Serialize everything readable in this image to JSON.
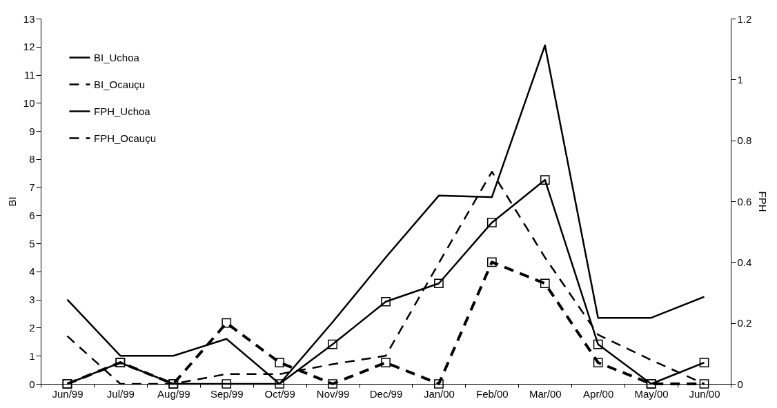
{
  "chart_data": {
    "type": "line",
    "categories": [
      "Jun/99",
      "Jul/99",
      "Aug/99",
      "Sep/99",
      "Oct/99",
      "Nov/99",
      "Dec/99",
      "Jan/00",
      "Feb/00",
      "Mar/00",
      "Apr/00",
      "May/00",
      "Jun/00"
    ],
    "series": [
      {
        "name": "BI_Uchoa",
        "color": "#000000",
        "line_style": "solid",
        "marker": "none",
        "values": [
          3.0,
          1.0,
          1.0,
          1.6,
          0,
          2.2,
          4.5,
          6.7,
          6.65,
          12.05,
          2.35,
          2.35,
          3.1
        ]
      },
      {
        "name": "BI_Ocauçu",
        "color": "#000000",
        "line_style": "dashed",
        "marker": "none",
        "values": [
          1.7,
          0,
          0,
          0.35,
          0.35,
          0.7,
          1.0,
          4.3,
          7.55,
          4.5,
          1.75,
          0.85,
          0
        ]
      },
      {
        "name": "FPH_Uchoa",
        "color": "#000000",
        "line_style": "solid",
        "marker": "square",
        "axis": "y2",
        "values": [
          0,
          0.07,
          0,
          0,
          0,
          0.13,
          0.27,
          0.33,
          0.53,
          0.67,
          0.13,
          0,
          0.07
        ]
      },
      {
        "name": "FPH_Ocauçu",
        "color": "#000000",
        "line_style": "dashed",
        "marker": "square",
        "axis": "y2",
        "values": [
          0,
          0.07,
          0,
          0.2,
          0.07,
          0,
          0.07,
          0,
          0.4,
          0.33,
          0.07,
          0,
          0
        ]
      }
    ],
    "ylabel": "BI",
    "y2label": "FPH",
    "ylim": [
      0,
      13
    ],
    "yticks": [
      0,
      1,
      2,
      3,
      4,
      5,
      6,
      7,
      8,
      9,
      10,
      11,
      12,
      13
    ],
    "y2lim": [
      0,
      1.2
    ],
    "y2ticks": [
      0,
      0.2,
      0.4,
      0.6,
      0.8,
      1,
      1.2
    ],
    "legend": "top left",
    "grid": false
  }
}
